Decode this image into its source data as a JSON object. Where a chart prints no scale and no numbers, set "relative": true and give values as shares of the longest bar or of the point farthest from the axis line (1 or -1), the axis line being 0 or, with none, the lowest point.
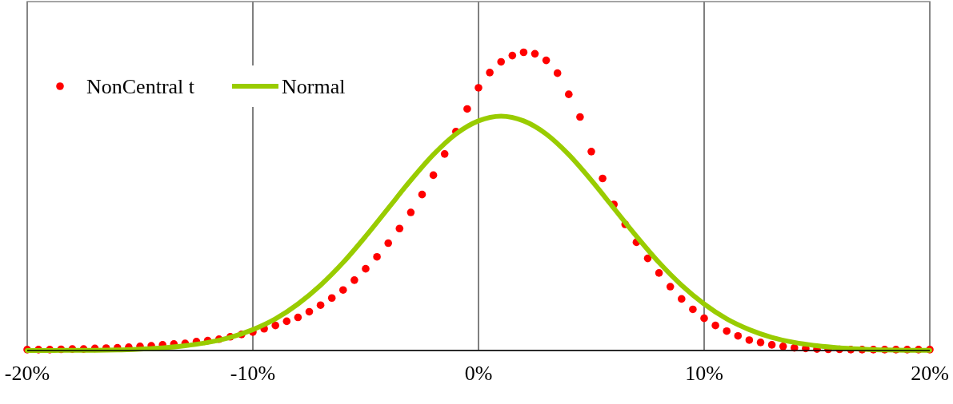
{
  "chart_data": {
    "type": "line",
    "relative": true,
    "xlim": [
      -20,
      20
    ],
    "xticks": [
      {
        "value": -20,
        "label": "-20%"
      },
      {
        "value": -10,
        "label": "-10%"
      },
      {
        "value": 0,
        "label": "0%"
      },
      {
        "value": 10,
        "label": "10%"
      },
      {
        "value": 20,
        "label": "20%"
      }
    ],
    "grid": "x",
    "legend": "top left",
    "series": [
      {
        "name": "NonCentral t",
        "type": "scatter",
        "marker": "circle",
        "color": "#ff0000",
        "x": [
          -20,
          -19.5,
          -19,
          -18.5,
          -18,
          -17.5,
          -17,
          -16.5,
          -16,
          -15.5,
          -15,
          -14.5,
          -14,
          -13.5,
          -13,
          -12.5,
          -12,
          -11.5,
          -11,
          -10.5,
          -10,
          -9.5,
          -9,
          -8.5,
          -8,
          -7.5,
          -7,
          -6.5,
          -6,
          -5.5,
          -5,
          -4.5,
          -4,
          -3.5,
          -3,
          -2.5,
          -2,
          -1.5,
          -1,
          -0.5,
          0,
          0.5,
          1,
          1.5,
          2,
          2.5,
          3,
          3.5,
          4,
          4.5,
          5,
          5.5,
          6,
          6.5,
          7,
          7.5,
          8,
          8.5,
          9,
          9.5,
          10,
          10.5,
          11,
          11.5,
          12,
          12.5,
          13,
          13.5,
          14,
          14.5,
          15,
          15.5,
          16,
          16.5,
          17,
          17.5,
          18,
          18.5,
          19,
          19.5,
          20
        ],
        "values": [
          0.003,
          0.003,
          0.003,
          0.004,
          0.005,
          0.005,
          0.007,
          0.008,
          0.009,
          0.011,
          0.014,
          0.016,
          0.019,
          0.022,
          0.024,
          0.03,
          0.033,
          0.038,
          0.046,
          0.054,
          0.062,
          0.073,
          0.084,
          0.098,
          0.111,
          0.13,
          0.152,
          0.176,
          0.203,
          0.236,
          0.274,
          0.314,
          0.36,
          0.409,
          0.463,
          0.523,
          0.588,
          0.659,
          0.734,
          0.81,
          0.881,
          0.932,
          0.968,
          0.989,
          1,
          0.995,
          0.973,
          0.93,
          0.859,
          0.783,
          0.667,
          0.577,
          0.49,
          0.423,
          0.363,
          0.309,
          0.26,
          0.214,
          0.173,
          0.138,
          0.108,
          0.084,
          0.065,
          0.049,
          0.035,
          0.027,
          0.019,
          0.014,
          0.009,
          0.007,
          0.005,
          0.004,
          0.004,
          0.003,
          0.003,
          0.003,
          0.003,
          0.003,
          0.003,
          0.003,
          0.003
        ]
      },
      {
        "name": "Normal",
        "line_style": "solid",
        "color": "#99cc00",
        "x": [
          -20,
          -19,
          -18,
          -17,
          -16,
          -15,
          -14,
          -13,
          -12,
          -11,
          -10,
          -9,
          -8,
          -7,
          -6,
          -5,
          -4,
          -3,
          -2,
          -1,
          0,
          1,
          2,
          3,
          4,
          5,
          6,
          7,
          8,
          9,
          10,
          11,
          12,
          13,
          14,
          15,
          16,
          17,
          18,
          19,
          20
        ],
        "values": [
          0,
          0,
          0.001,
          0.001,
          0.002,
          0.005,
          0.009,
          0.016,
          0.027,
          0.044,
          0.07,
          0.106,
          0.156,
          0.219,
          0.295,
          0.383,
          0.477,
          0.571,
          0.657,
          0.726,
          0.77,
          0.786,
          0.77,
          0.726,
          0.657,
          0.571,
          0.477,
          0.383,
          0.295,
          0.219,
          0.156,
          0.106,
          0.07,
          0.044,
          0.027,
          0.016,
          0.009,
          0.005,
          0.002,
          0.001,
          0.001
        ]
      }
    ]
  }
}
